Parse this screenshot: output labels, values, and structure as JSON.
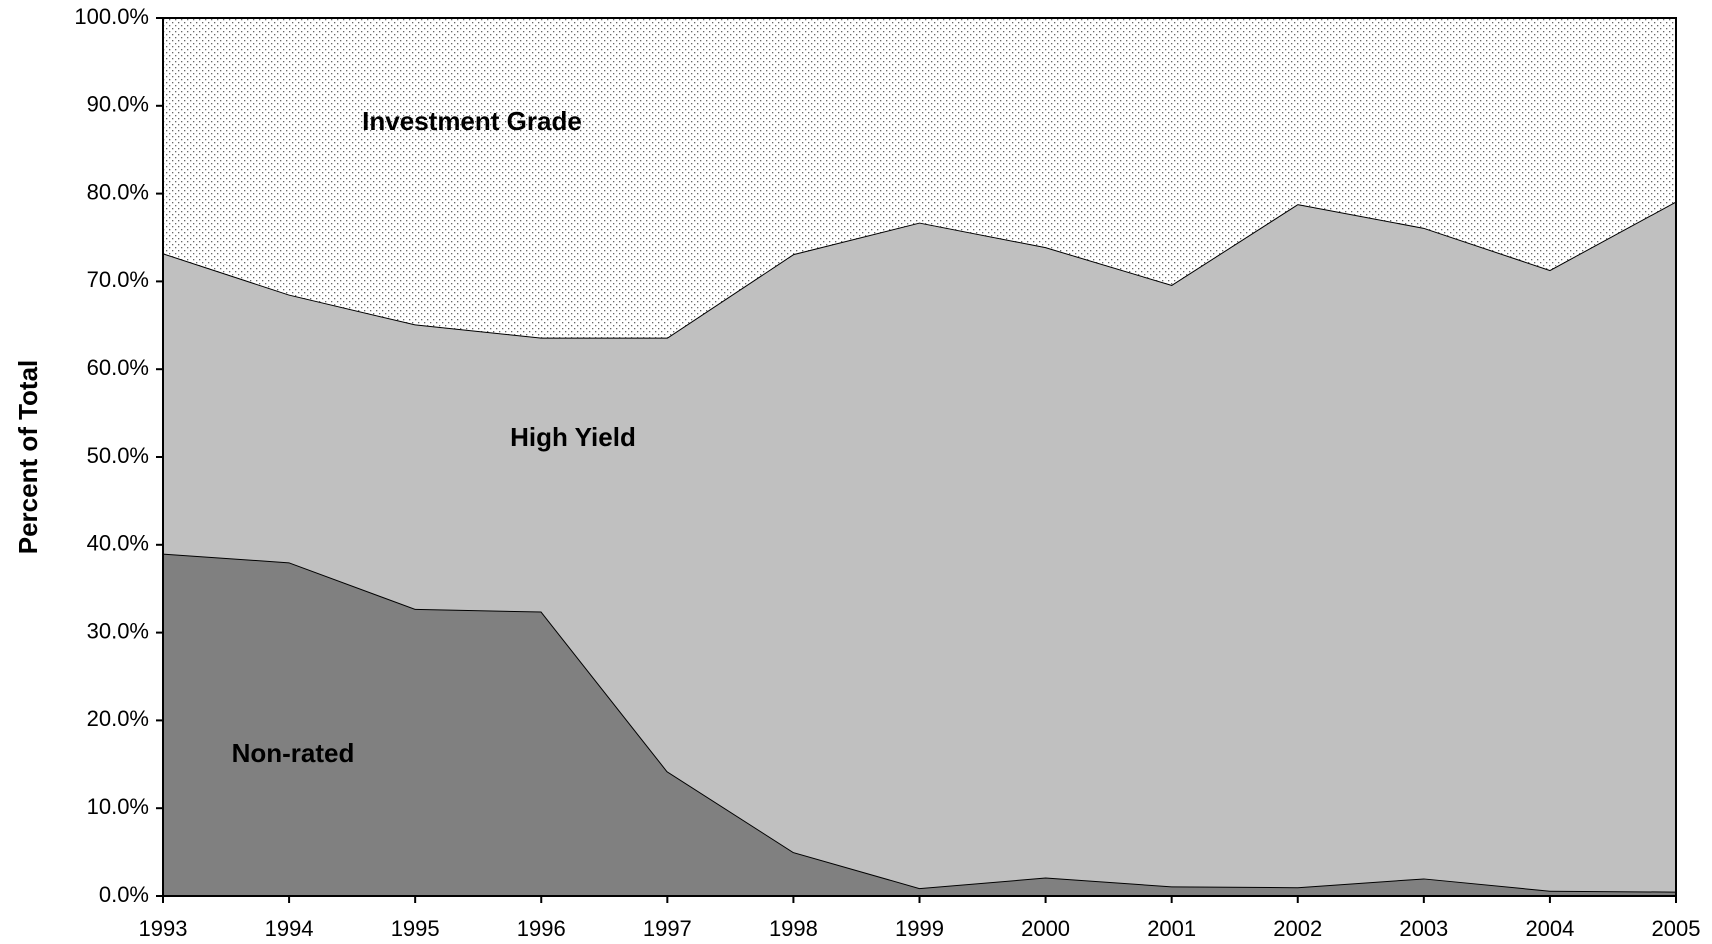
{
  "chart_data": {
    "type": "stacked-area",
    "y_label": "Percent of Total",
    "categories": [
      "1993",
      "1994",
      "1995",
      "1996",
      "1997",
      "1998",
      "1999",
      "2000",
      "2001",
      "2002",
      "2003",
      "2004",
      "2005"
    ],
    "series": [
      {
        "name": "Non-rated",
        "color": "#808080",
        "values": [
          39.0,
          38.0,
          32.7,
          32.4,
          14.2,
          5.0,
          0.9,
          2.1,
          1.1,
          1.0,
          2.0,
          0.6,
          0.5
        ]
      },
      {
        "name": "High Yield",
        "color": "#c0c0c0",
        "values": [
          34.2,
          30.5,
          32.4,
          31.2,
          49.4,
          68.1,
          75.8,
          71.8,
          68.5,
          77.8,
          74.1,
          70.7,
          78.6
        ]
      },
      {
        "name": "Investment Grade",
        "color": "#ffffff",
        "pattern": "dots",
        "values": [
          26.8,
          31.5,
          34.9,
          36.4,
          36.4,
          26.9,
          23.3,
          26.1,
          30.4,
          21.2,
          23.9,
          28.7,
          20.9
        ]
      }
    ],
    "ylim": [
      0,
      100
    ],
    "yticks": [
      {
        "value": 0,
        "label": "0.0%"
      },
      {
        "value": 10,
        "label": "10.0%"
      },
      {
        "value": 20,
        "label": "20.0%"
      },
      {
        "value": 30,
        "label": "30.0%"
      },
      {
        "value": 40,
        "label": "40.0%"
      },
      {
        "value": 50,
        "label": "50.0%"
      },
      {
        "value": 60,
        "label": "60.0%"
      },
      {
        "value": 70,
        "label": "70.0%"
      },
      {
        "value": 80,
        "label": "80.0%"
      },
      {
        "value": 90,
        "label": "90.0%"
      },
      {
        "value": 100,
        "label": "100.0%"
      }
    ]
  }
}
